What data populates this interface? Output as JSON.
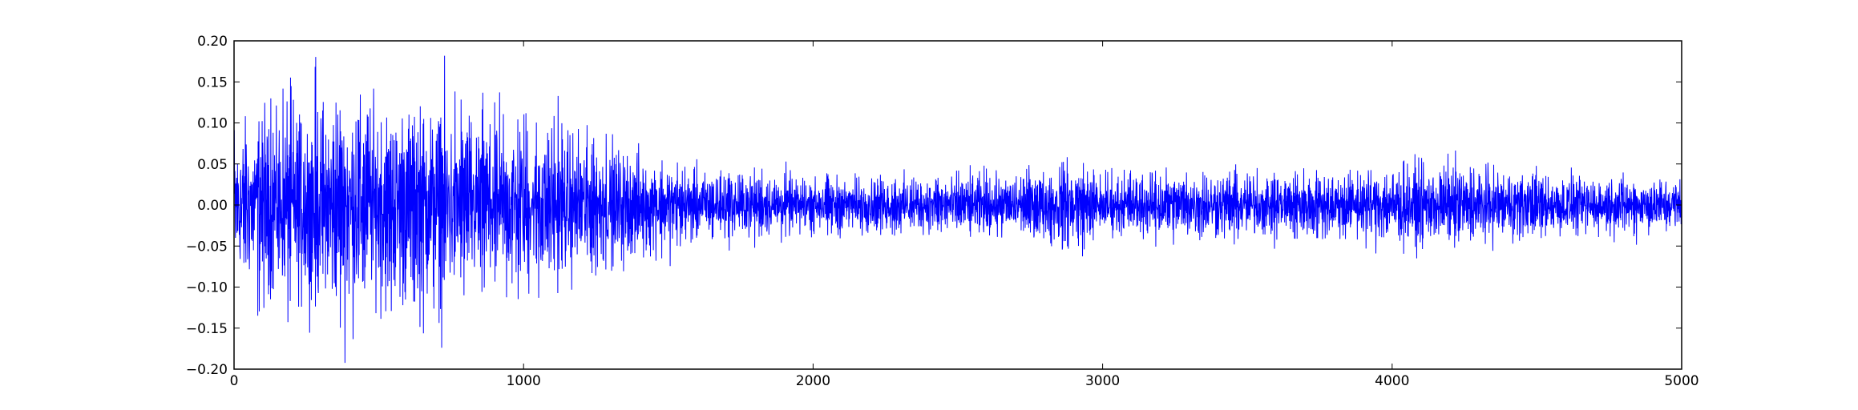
{
  "chart_data": {
    "type": "line",
    "title": "",
    "xlabel": "",
    "ylabel": "",
    "xlim": [
      0,
      5000
    ],
    "ylim": [
      -0.2,
      0.2
    ],
    "xticks": [
      0,
      1000,
      2000,
      3000,
      4000,
      5000
    ],
    "xtick_labels": [
      "0",
      "1000",
      "2000",
      "3000",
      "4000",
      "5000"
    ],
    "yticks": [
      -0.2,
      -0.15,
      -0.1,
      -0.05,
      0.0,
      0.05,
      0.1,
      0.15,
      0.2
    ],
    "ytick_labels": [
      "−0.20",
      "−0.15",
      "−0.10",
      "−0.05",
      "0.00",
      "0.05",
      "0.10",
      "0.15",
      "0.20"
    ],
    "grid": false,
    "legend": "none",
    "series": [
      {
        "color": "#0000ff",
        "n_points": 5000,
        "envelope_x": [
          0,
          250,
          350,
          500,
          700,
          900,
          1100,
          1300,
          1500,
          1700,
          2000,
          2400,
          2800,
          2850,
          3000,
          3200,
          3500,
          3800,
          4000,
          4200,
          4500,
          4700,
          5000
        ],
        "envelope_amplitude": [
          0.15,
          0.18,
          0.2,
          0.19,
          0.17,
          0.16,
          0.15,
          0.11,
          0.08,
          0.06,
          0.05,
          0.05,
          0.06,
          0.09,
          0.05,
          0.06,
          0.06,
          0.06,
          0.07,
          0.07,
          0.06,
          0.05,
          0.05
        ]
      }
    ]
  }
}
